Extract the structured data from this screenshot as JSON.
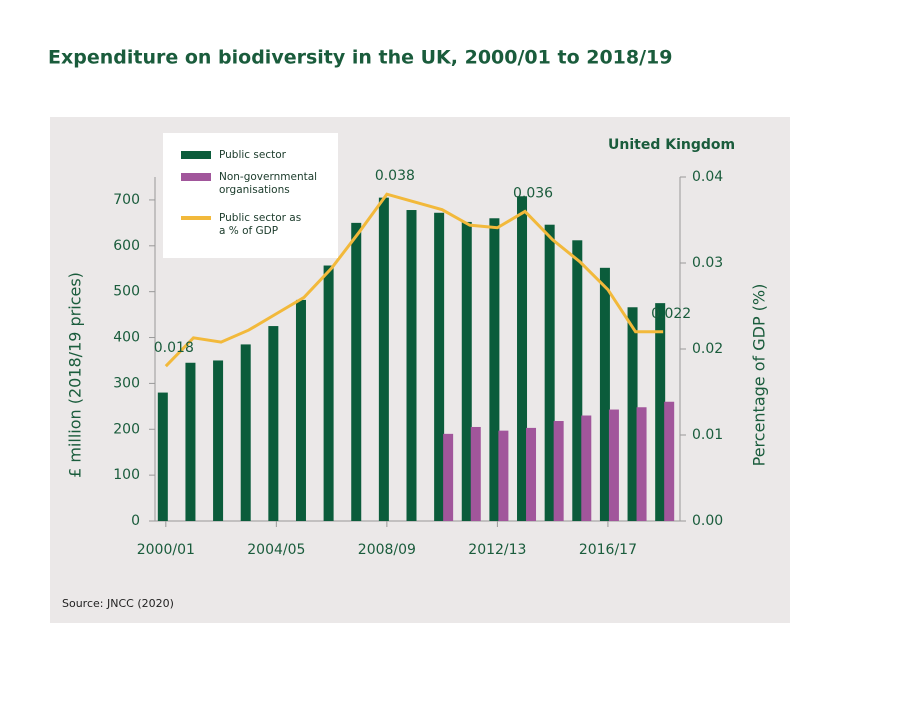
{
  "chart_data": {
    "type": "bar",
    "title": "Expenditure on biodiversity in the UK, 2000/01 to 2018/19",
    "subtitle": "United Kingdom",
    "source": "Source: JNCC (2020)",
    "y_label": "£ million (2018/19 prices)",
    "y2_label": "Percentage of GDP (%)",
    "categories": [
      "2000/01",
      null,
      null,
      null,
      "2004/05",
      null,
      null,
      null,
      "2008/09",
      null,
      null,
      null,
      "2012/13",
      null,
      null,
      null,
      "2016/17",
      null,
      null
    ],
    "series": [
      {
        "name": "Public sector",
        "type": "bar",
        "color": "#0b5c3b",
        "values": [
          280,
          345,
          350,
          385,
          425,
          482,
          557,
          650,
          705,
          678,
          672,
          652,
          660,
          708,
          646,
          612,
          552,
          466,
          475
        ]
      },
      {
        "name": "Non-governmental organisations",
        "type": "bar",
        "color": "#a1569b",
        "values": [
          null,
          null,
          null,
          null,
          null,
          null,
          null,
          null,
          null,
          null,
          190,
          205,
          197,
          203,
          218,
          230,
          243,
          248,
          260
        ]
      },
      {
        "name": "Public sector as a % of GDP",
        "type": "line",
        "axis": "y2",
        "color": "#f2b93b",
        "values": [
          0.018,
          0.0213,
          0.0208,
          0.0222,
          0.0241,
          0.026,
          0.0294,
          0.0336,
          0.038,
          0.0371,
          0.0362,
          0.0344,
          0.0341,
          0.036,
          0.0327,
          0.0301,
          0.0269,
          0.022,
          0.022
        ],
        "value_labels": [
          "0.018",
          null,
          null,
          null,
          null,
          null,
          null,
          null,
          "0.038",
          null,
          null,
          null,
          null,
          "0.036",
          null,
          null,
          null,
          null,
          "0.022"
        ]
      }
    ],
    "ylim": [
      0,
      750
    ],
    "yticks": [
      0,
      100,
      200,
      300,
      400,
      500,
      600,
      700
    ],
    "y2lim": [
      0,
      0.04
    ],
    "y2ticks": [
      {
        "value": 0,
        "label": "0.00"
      },
      {
        "value": 0.01,
        "label": "0.01"
      },
      {
        "value": 0.02,
        "label": "0.02"
      },
      {
        "value": 0.03,
        "label": "0.03"
      },
      {
        "value": 0.04,
        "label": "0.04"
      }
    ],
    "legend": "upper left"
  }
}
